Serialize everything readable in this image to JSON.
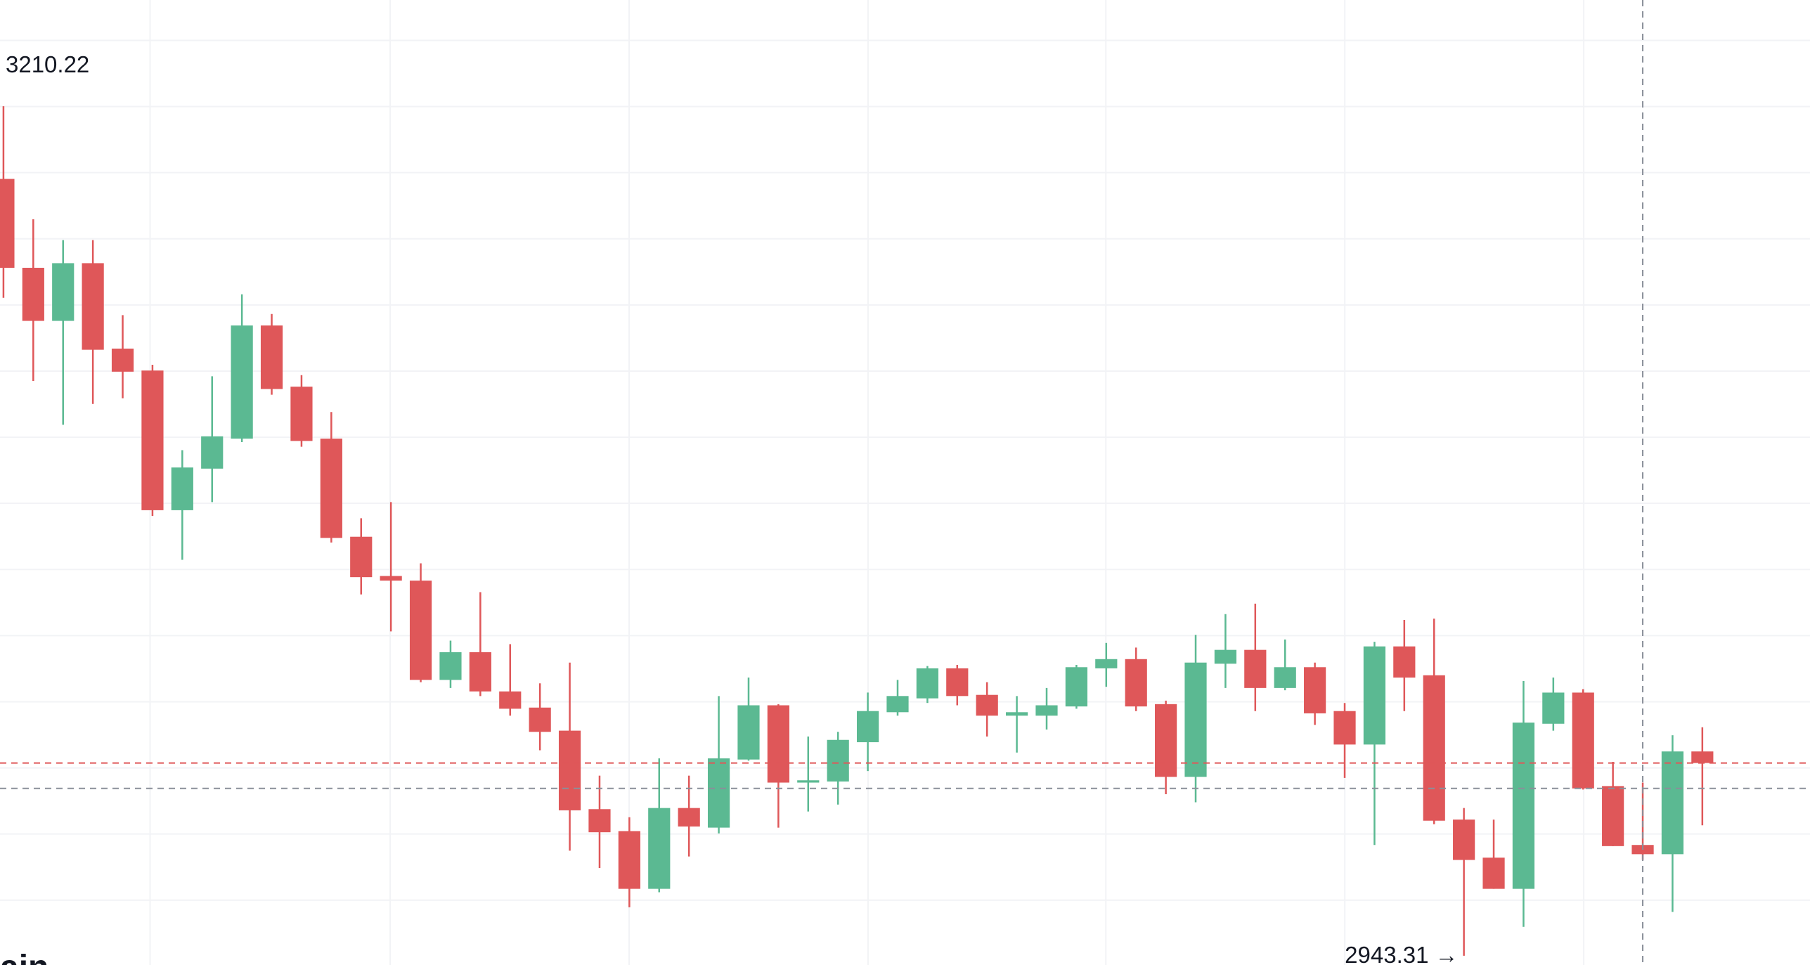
{
  "chart_data": {
    "type": "candlestick",
    "title": "ain",
    "up_color": "#5bb992",
    "down_color": "#df5759",
    "ylim": [
      2940.41,
      3243.58
    ],
    "open": [
      3187.37,
      3159.45,
      3142.77,
      3160.9,
      3134.06,
      3127.17,
      3083.29,
      3096.35,
      3105.78,
      3141.32,
      3122.1,
      3105.78,
      3074.95,
      3062.62,
      3061.17,
      3029.98,
      3038.69,
      3026.36,
      3021.28,
      3014.03,
      2989.37,
      2982.48,
      2964.34,
      2989.73,
      2983.56,
      3004.96,
      3022.0,
      2997.71,
      2998.07,
      3010.4,
      3019.83,
      3024.18,
      3033.61,
      3025.27,
      3018.74,
      3018.74,
      3021.64,
      3033.61,
      3036.51,
      3022.37,
      2999.52,
      3035.06,
      3039.41,
      3027.44,
      3033.97,
      3020.19,
      3009.67,
      3040.5,
      3031.43,
      2986.1,
      2974.13,
      2964.34,
      3016.2,
      3025.99,
      2996.62,
      2978.12,
      2975.22,
      3007.5
    ],
    "high": [
      3210.22,
      3174.68,
      3168.15,
      3168.15,
      3144.58,
      3128.99,
      3102.15,
      3125.36,
      3151.11,
      3144.94,
      3125.72,
      3114.12,
      3080.75,
      3085.83,
      3066.61,
      3042.31,
      3057.54,
      3041.22,
      3028.89,
      3035.42,
      2999.88,
      2986.83,
      3005.32,
      2999.88,
      3024.91,
      3030.71,
      3022.37,
      3012.21,
      3013.66,
      3025.99,
      3029.98,
      3034.33,
      3034.7,
      3029.26,
      3024.91,
      3027.44,
      3034.7,
      3041.59,
      3040.14,
      3023.46,
      3044.13,
      3050.65,
      3053.92,
      3042.68,
      3035.42,
      3022.73,
      3041.95,
      3048.84,
      3049.2,
      2989.73,
      2986.1,
      3029.62,
      3030.71,
      3027.08,
      3004.23,
      2997.71,
      3012.58,
      3015.11
    ],
    "low": [
      3150.02,
      3123.91,
      3110.13,
      3116.66,
      3118.47,
      3081.48,
      3067.7,
      3085.83,
      3104.69,
      3119.56,
      3103.24,
      3073.14,
      3056.82,
      3045.21,
      3029.26,
      3027.44,
      3024.91,
      3018.74,
      3007.86,
      2976.31,
      2970.87,
      2958.54,
      2963.26,
      2974.5,
      2981.75,
      3004.6,
      2983.56,
      2988.64,
      2990.82,
      3001.33,
      3018.74,
      3022.73,
      3022.0,
      3012.21,
      3007.14,
      3014.39,
      3020.92,
      3027.81,
      3020.19,
      2994.08,
      2991.54,
      3027.44,
      3020.19,
      3026.72,
      3015.84,
      2999.16,
      2978.12,
      3020.19,
      2984.65,
      2943.31,
      2964.34,
      2952.38,
      3014.03,
      2995.53,
      2977.76,
      2973.41,
      2957.09,
      2984.29
    ],
    "close": [
      3159.45,
      3142.77,
      3160.9,
      3133.7,
      3126.81,
      3083.29,
      3096.71,
      3106.5,
      3141.32,
      3121.37,
      3105.05,
      3074.59,
      3062.26,
      3061.17,
      3029.98,
      3038.69,
      3026.36,
      3020.92,
      3013.66,
      2989.0,
      2982.11,
      2964.34,
      2989.73,
      2983.93,
      3005.32,
      3022.0,
      2997.71,
      2998.43,
      3011.13,
      3020.19,
      3024.91,
      3033.61,
      3024.91,
      3018.74,
      3019.83,
      3022.0,
      3033.97,
      3036.51,
      3021.64,
      2999.52,
      3035.42,
      3039.41,
      3027.44,
      3033.97,
      3019.47,
      3009.67,
      3040.5,
      3030.71,
      2985.74,
      2973.41,
      2964.34,
      3016.56,
      3025.99,
      2995.89,
      2977.76,
      2975.22,
      3007.5,
      3003.87
    ],
    "high_label": "3210.22",
    "low_label": "2943.31 →",
    "crosshair": {
      "index": 55,
      "price": 2995.89
    }
  }
}
